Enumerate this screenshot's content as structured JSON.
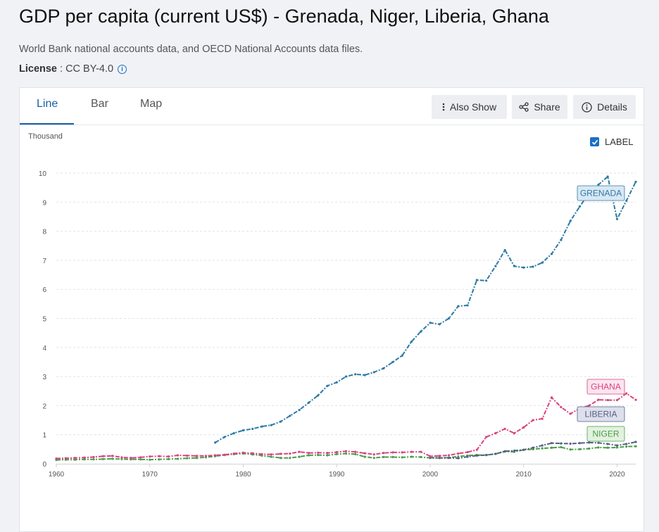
{
  "title": "GDP per capita (current US$) - Grenada, Niger, Liberia, Ghana",
  "subtitle": "World Bank national accounts data, and OECD National Accounts data files.",
  "license": {
    "label": "License",
    "value": " : CC BY-4.0"
  },
  "tabs": [
    {
      "label": "Line"
    },
    {
      "label": "Bar"
    },
    {
      "label": "Map"
    }
  ],
  "buttons": {
    "also_show": "Also Show",
    "share": "Share",
    "details": "Details"
  },
  "chart_controls": {
    "unit": "Thousand",
    "label_toggle": "LABEL"
  },
  "chart_data": {
    "type": "line",
    "title": "GDP per capita (current US$) - Grenada, Niger, Liberia, Ghana",
    "ylabel": "Thousand",
    "xlim": [
      1960,
      2022
    ],
    "ylim": [
      0,
      10
    ],
    "x_ticks": [
      1960,
      1970,
      1980,
      1990,
      2000,
      2010,
      2020
    ],
    "y_ticks": [
      0,
      1,
      2,
      3,
      4,
      5,
      6,
      7,
      8,
      9,
      10
    ],
    "legend": "inline labels at series ends",
    "series": [
      {
        "name": "GRENADA",
        "color": "#2e7aa5",
        "label_fill": "#d9e8f3",
        "start": 1977,
        "values": [
          0.73,
          0.92,
          1.05,
          1.15,
          1.2,
          1.28,
          1.33,
          1.45,
          1.65,
          1.85,
          2.1,
          2.35,
          2.68,
          2.8,
          3.0,
          3.08,
          3.05,
          3.15,
          3.28,
          3.5,
          3.72,
          4.2,
          4.55,
          4.85,
          4.8,
          5.0,
          5.42,
          5.45,
          6.32,
          6.3,
          6.8,
          7.35,
          6.8,
          6.75,
          6.78,
          6.92,
          7.22,
          7.7,
          8.35,
          8.85,
          9.3,
          9.6,
          9.88,
          8.42,
          9.05,
          9.7
        ]
      },
      {
        "name": "GHANA",
        "color": "#d9437e",
        "label_fill": "#fbe5ee",
        "start": 1960,
        "values": [
          0.18,
          0.19,
          0.2,
          0.21,
          0.23,
          0.26,
          0.27,
          0.22,
          0.2,
          0.22,
          0.25,
          0.26,
          0.25,
          0.29,
          0.28,
          0.27,
          0.27,
          0.29,
          0.31,
          0.35,
          0.38,
          0.36,
          0.33,
          0.32,
          0.34,
          0.35,
          0.41,
          0.37,
          0.38,
          0.37,
          0.4,
          0.43,
          0.41,
          0.36,
          0.32,
          0.37,
          0.39,
          0.39,
          0.41,
          0.41,
          0.26,
          0.27,
          0.29,
          0.35,
          0.4,
          0.48,
          0.92,
          1.05,
          1.2,
          1.05,
          1.25,
          1.5,
          1.55,
          2.28,
          1.95,
          1.72,
          1.9,
          2.0,
          2.2,
          2.19,
          2.19,
          2.42,
          2.2
        ]
      },
      {
        "name": "LIBERIA",
        "color": "#555f86",
        "label_fill": "#dde0ec",
        "start": 2000,
        "values": [
          0.21,
          0.2,
          0.2,
          0.19,
          0.24,
          0.28,
          0.3,
          0.34,
          0.43,
          0.45,
          0.48,
          0.55,
          0.63,
          0.71,
          0.7,
          0.69,
          0.71,
          0.73,
          0.72,
          0.68,
          0.63,
          0.68,
          0.75
        ]
      },
      {
        "name": "NIGER",
        "color": "#4a9e4a",
        "label_fill": "#e3f1df",
        "start": 1960,
        "values": [
          0.13,
          0.14,
          0.14,
          0.15,
          0.15,
          0.16,
          0.17,
          0.16,
          0.15,
          0.15,
          0.14,
          0.15,
          0.16,
          0.17,
          0.19,
          0.2,
          0.22,
          0.26,
          0.3,
          0.33,
          0.35,
          0.32,
          0.28,
          0.24,
          0.2,
          0.2,
          0.24,
          0.29,
          0.3,
          0.29,
          0.33,
          0.35,
          0.33,
          0.24,
          0.2,
          0.23,
          0.23,
          0.22,
          0.24,
          0.23,
          0.2,
          0.2,
          0.21,
          0.25,
          0.28,
          0.3,
          0.3,
          0.34,
          0.42,
          0.41,
          0.48,
          0.5,
          0.53,
          0.55,
          0.57,
          0.49,
          0.5,
          0.52,
          0.56,
          0.55,
          0.56,
          0.59,
          0.6
        ]
      }
    ]
  }
}
